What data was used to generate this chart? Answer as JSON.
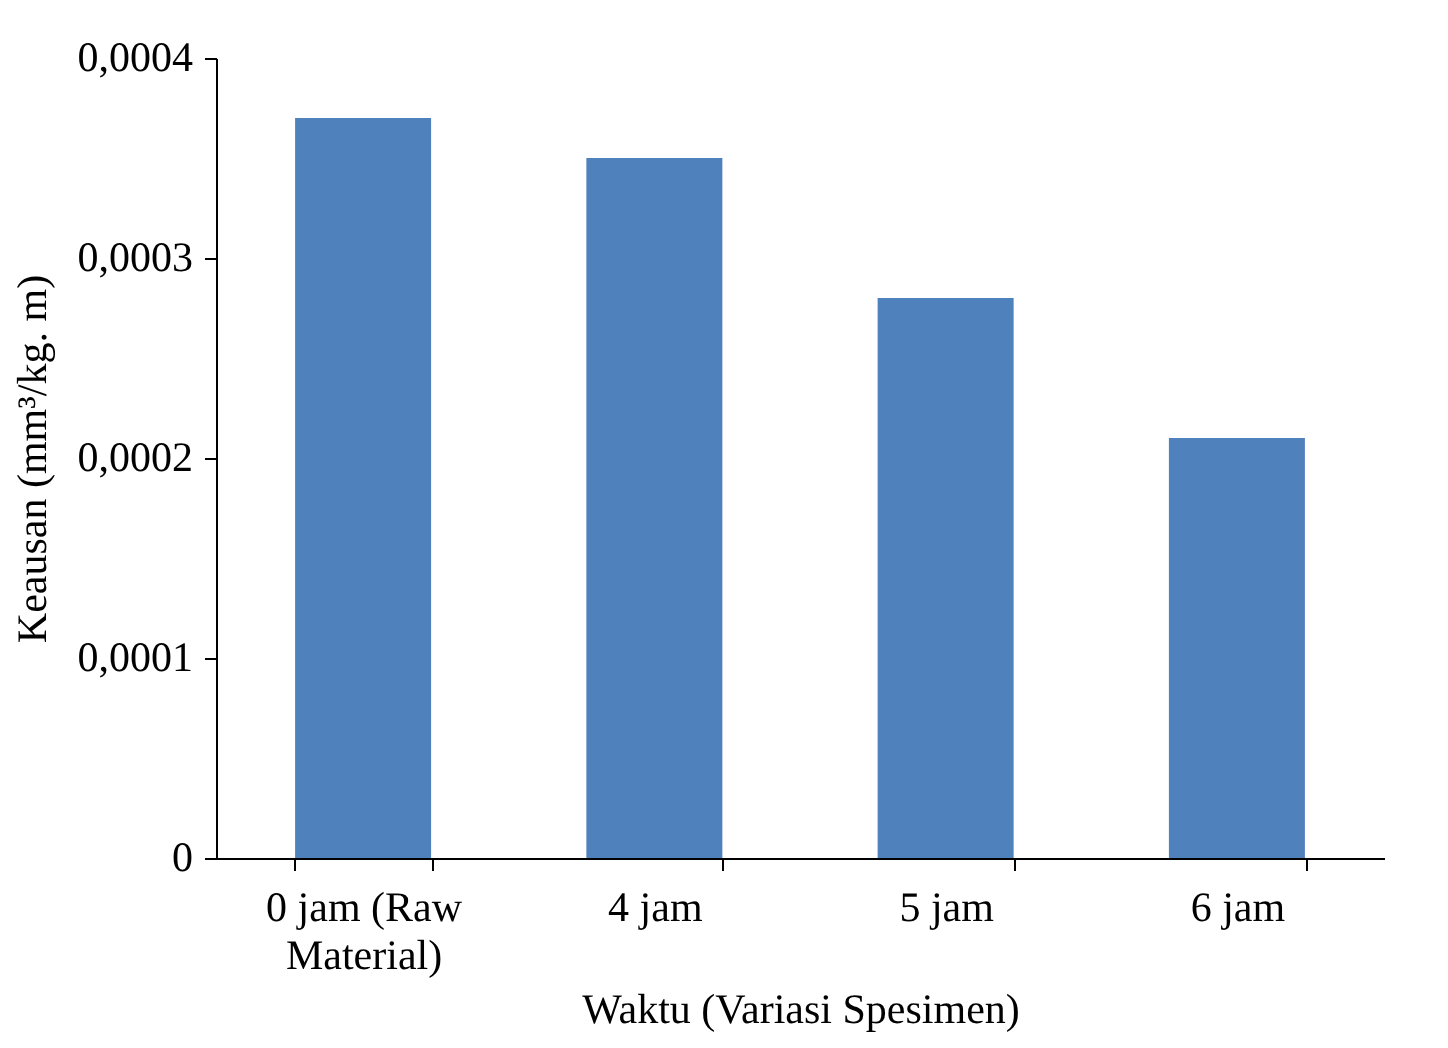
{
  "chart_data": {
    "type": "bar",
    "xlabel": "Waktu (Variasi Spesimen)",
    "ylabel": "Keausan (mm³/kg. m)",
    "categories": [
      "0 jam (Raw Material)",
      "4 jam",
      "5 jam",
      "6 jam"
    ],
    "values": [
      0.00037,
      0.00035,
      0.00028,
      0.00021
    ],
    "color": "#4f81bd",
    "ylim": [
      0,
      0.0004
    ],
    "yticks": [
      0,
      {
        "value": 0.0001,
        "label": "0,0001"
      },
      {
        "value": 0.0002,
        "label": "0,0002"
      },
      {
        "value": 0.0003,
        "label": "0,0003"
      },
      {
        "value": 0.0004,
        "label": "0,0004"
      }
    ],
    "grid": false
  }
}
